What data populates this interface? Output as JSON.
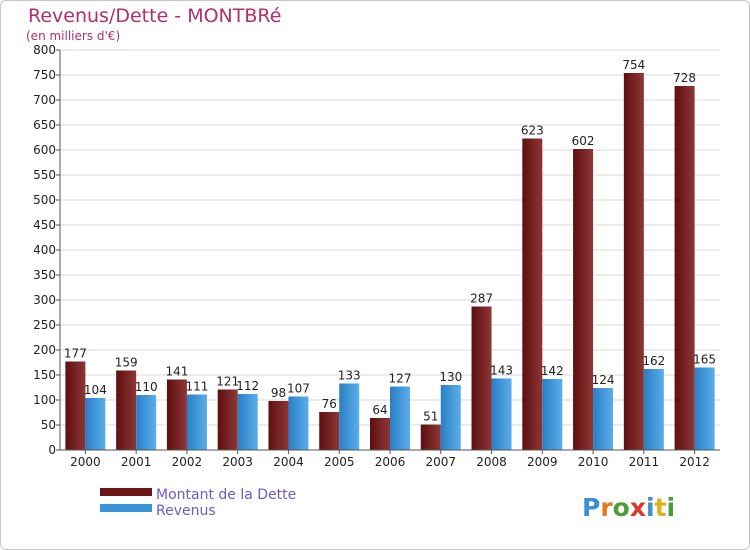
{
  "chart_data": {
    "type": "bar",
    "title": "Revenus/Dette - MONTBRé",
    "subtitle": "(en milliers d'€)",
    "categories": [
      "2000",
      "2001",
      "2002",
      "2003",
      "2004",
      "2005",
      "2006",
      "2007",
      "2008",
      "2009",
      "2010",
      "2011",
      "2012"
    ],
    "series": [
      {
        "name": "Montant de la Dette",
        "color": "#7a1e1e",
        "values": [
          177,
          159,
          141,
          121,
          98,
          76,
          64,
          51,
          287,
          623,
          602,
          754,
          728
        ]
      },
      {
        "name": "Revenus",
        "color": "#3a95d8",
        "values": [
          104,
          110,
          111,
          112,
          107,
          133,
          127,
          130,
          143,
          142,
          124,
          162,
          165
        ]
      }
    ],
    "ylim": [
      0,
      800
    ],
    "ytick_step": 50,
    "grid": true,
    "legend_position": "bottom-left"
  },
  "logo": {
    "text": "Proxiti"
  }
}
